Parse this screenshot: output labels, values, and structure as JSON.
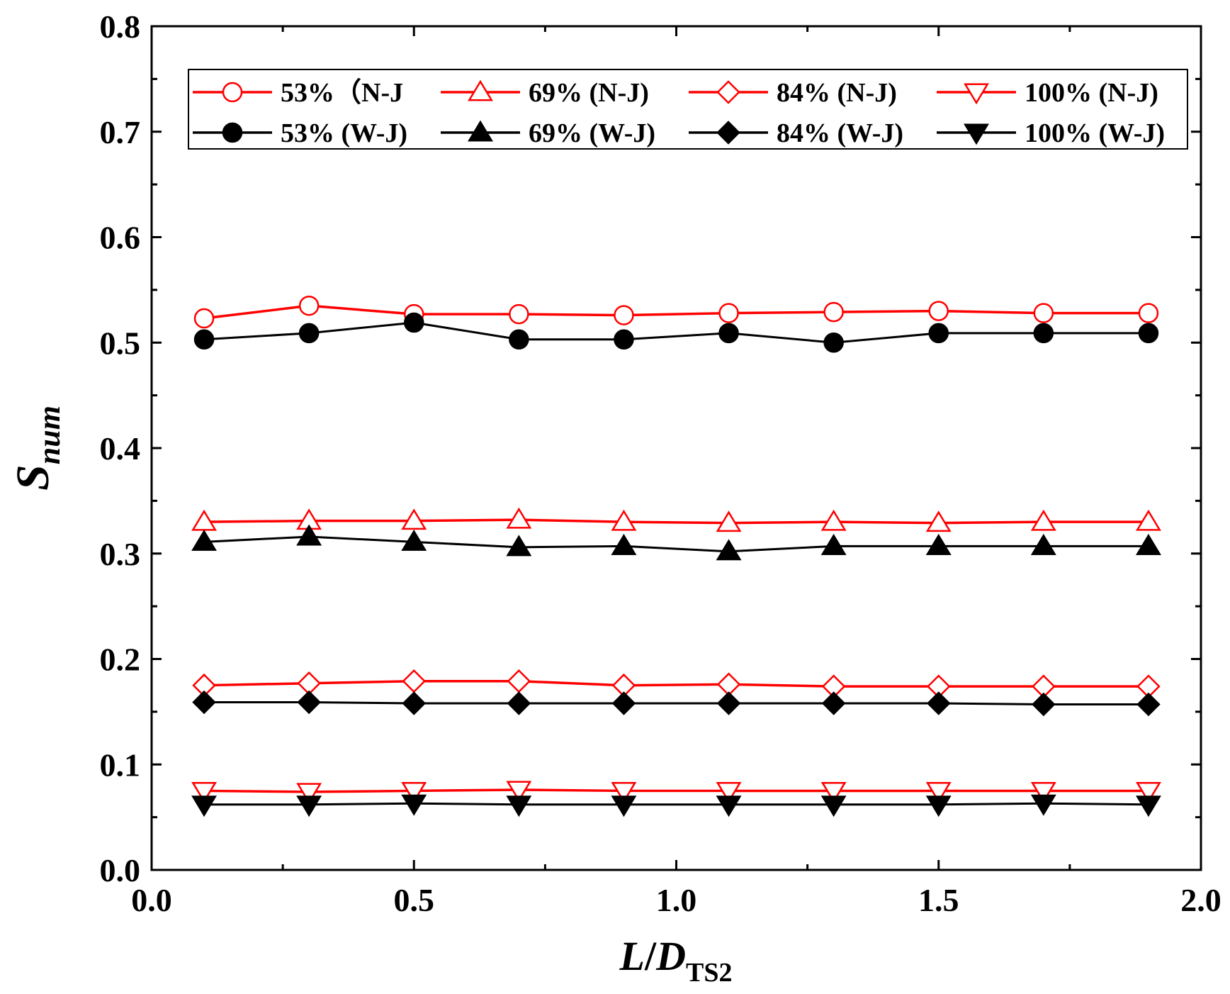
{
  "chart_data": {
    "type": "line",
    "title": "",
    "xlabel": {
      "main": "L",
      "slash": "/",
      "italic2": "D",
      "subscript": "TS2"
    },
    "ylabel": {
      "main": "S",
      "subscript": "num"
    },
    "xlim": [
      0.0,
      2.0
    ],
    "ylim": [
      0.0,
      0.8
    ],
    "x_major_ticks": [
      0.0,
      0.5,
      1.0,
      1.5,
      2.0
    ],
    "x_tick_labels": [
      "0.0",
      "0.5",
      "1.0",
      "1.5",
      "2.0"
    ],
    "y_major_ticks": [
      0.0,
      0.1,
      0.2,
      0.3,
      0.4,
      0.5,
      0.6,
      0.7,
      0.8
    ],
    "y_tick_labels": [
      "0.0",
      "0.1",
      "0.2",
      "0.3",
      "0.4",
      "0.5",
      "0.6",
      "0.7",
      "0.8"
    ],
    "x": [
      0.1,
      0.3,
      0.5,
      0.7,
      0.9,
      1.1,
      1.3,
      1.5,
      1.7,
      1.9
    ],
    "grid": false,
    "legend_position": "top",
    "colors": {
      "nj": "#ff0000",
      "wj": "#000000",
      "axis": "#000000"
    },
    "series": [
      {
        "name": "53%（N-J",
        "group": "nj",
        "marker": "circle",
        "filled": false,
        "values": [
          0.523,
          0.535,
          0.527,
          0.527,
          0.526,
          0.528,
          0.529,
          0.53,
          0.528,
          0.528
        ]
      },
      {
        "name": "69% (N-J)",
        "group": "nj",
        "marker": "triangle-up",
        "filled": false,
        "values": [
          0.33,
          0.331,
          0.331,
          0.332,
          0.33,
          0.329,
          0.33,
          0.329,
          0.33,
          0.33
        ]
      },
      {
        "name": "84% (N-J)",
        "group": "nj",
        "marker": "diamond",
        "filled": false,
        "values": [
          0.175,
          0.177,
          0.179,
          0.179,
          0.175,
          0.176,
          0.174,
          0.174,
          0.174,
          0.174
        ]
      },
      {
        "name": "100% (N-J)",
        "group": "nj",
        "marker": "triangle-down",
        "filled": false,
        "values": [
          0.075,
          0.074,
          0.075,
          0.076,
          0.075,
          0.075,
          0.075,
          0.075,
          0.075,
          0.075
        ]
      },
      {
        "name": "53% (W-J)",
        "group": "wj",
        "marker": "circle",
        "filled": true,
        "values": [
          0.503,
          0.509,
          0.519,
          0.503,
          0.503,
          0.509,
          0.5,
          0.509,
          0.509,
          0.509
        ]
      },
      {
        "name": "69% (W-J)",
        "group": "wj",
        "marker": "triangle-up",
        "filled": true,
        "values": [
          0.311,
          0.316,
          0.311,
          0.306,
          0.307,
          0.302,
          0.307,
          0.307,
          0.307,
          0.307
        ]
      },
      {
        "name": "84% (W-J)",
        "group": "wj",
        "marker": "diamond",
        "filled": true,
        "values": [
          0.159,
          0.159,
          0.158,
          0.158,
          0.158,
          0.158,
          0.158,
          0.158,
          0.157,
          0.157
        ]
      },
      {
        "name": "100% (W-J)",
        "group": "wj",
        "marker": "triangle-down",
        "filled": true,
        "values": [
          0.062,
          0.062,
          0.063,
          0.062,
          0.062,
          0.062,
          0.062,
          0.062,
          0.063,
          0.062
        ]
      }
    ]
  }
}
